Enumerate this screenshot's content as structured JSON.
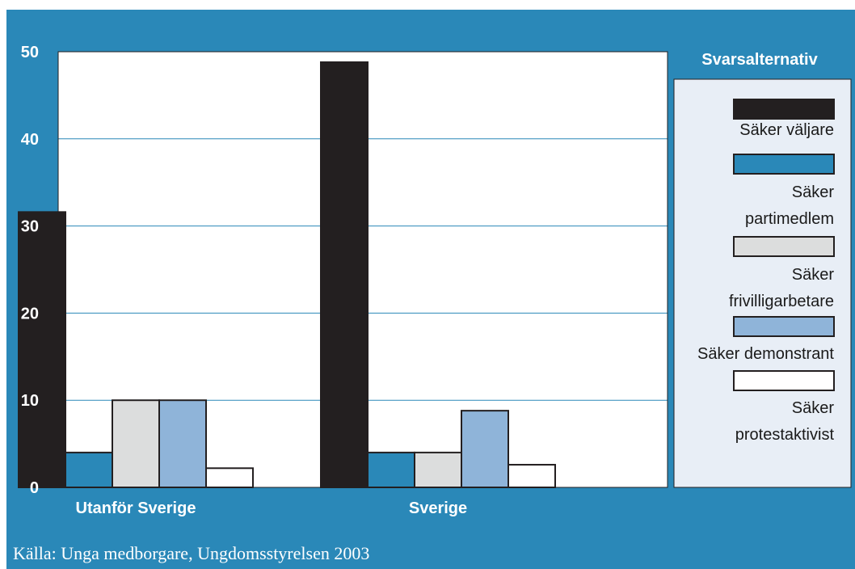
{
  "chart_data": {
    "type": "bar",
    "categories": [
      "Utanför Sverige",
      "Sverige"
    ],
    "series": [
      {
        "name": "Säker väljare",
        "values": [
          31.6,
          48.8
        ],
        "color": "#231f20"
      },
      {
        "name": "Säker partimedlem",
        "values": [
          4.0,
          4.0
        ],
        "color": "#2a88b8"
      },
      {
        "name": "Säker frivilligarbetare",
        "values": [
          10.0,
          4.0
        ],
        "color": "#dcdddd"
      },
      {
        "name": "Säker demonstrant",
        "values": [
          10.0,
          8.8
        ],
        "color": "#8fb4d9"
      },
      {
        "name": "Säker protestaktivist",
        "values": [
          2.2,
          2.6
        ],
        "color": "#ffffff"
      }
    ],
    "ylim": [
      0,
      50
    ],
    "yticks": [
      "0",
      "10",
      "20",
      "30",
      "40",
      "50"
    ],
    "grid": true,
    "legend": {
      "title": "Svarsalternativ",
      "placement": "right",
      "labels": [
        [
          "Säker väljare"
        ],
        [
          "Säker",
          "partimedlem"
        ],
        [
          "Säker",
          "frivilligarbetare"
        ],
        [
          "Säker demonstrant"
        ],
        [
          "Säker",
          "protestaktivist"
        ]
      ]
    },
    "source": "Källa: Unga medborgare, Ungdomsstyrelsen 2003"
  },
  "colors": {
    "frame_background": "#2a88b8",
    "plot_background": "#ffffff",
    "gridline": "#2a88b8",
    "legend_background": "#e8eef6"
  }
}
